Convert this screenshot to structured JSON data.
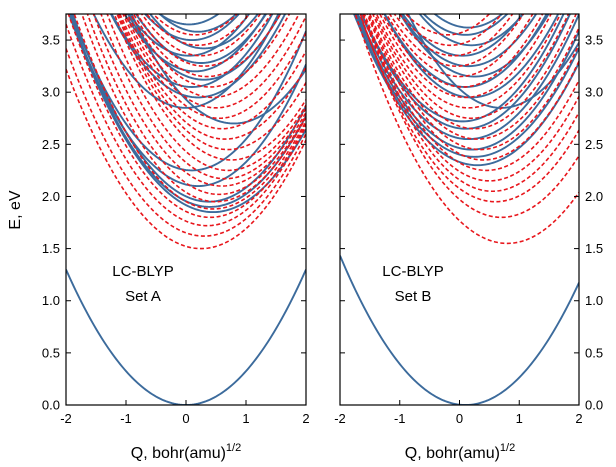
{
  "figure": {
    "ylabel": "E, eV",
    "xlabel_main": "Q, bohr(amu)",
    "xlabel_sup": "1/2"
  },
  "colors": {
    "solid": "#3c6b9c",
    "dashed": "#e8161c",
    "axis": "#000000"
  },
  "chart_data": [
    {
      "type": "line",
      "panel": "left",
      "annotation": [
        "LC-BLYP",
        "Set A"
      ],
      "xlim": [
        -2,
        2
      ],
      "ylim": [
        0,
        3.75
      ],
      "xticks": [
        -2,
        -1,
        0,
        1,
        2
      ],
      "xtick_labels": [
        "-2",
        "-1",
        "0",
        "1",
        "2"
      ],
      "yticks": [
        0,
        0.5,
        1.0,
        1.5,
        2.0,
        2.5,
        3.0,
        3.5
      ],
      "ytick_labels": [
        "0.0",
        "0.5",
        "1.0",
        "1.5",
        "2.0",
        "2.5",
        "3.0",
        "3.5"
      ],
      "ytick_side": "left",
      "grid": false,
      "series": [
        {
          "style": "solid",
          "x0": 0.0,
          "e0": 0.0,
          "curv": 0.325
        },
        {
          "style": "solid",
          "x0": 0.45,
          "e0": 1.85,
          "curv": 0.33
        },
        {
          "style": "solid",
          "x0": 0.4,
          "e0": 1.9,
          "curv": 0.34
        },
        {
          "style": "solid",
          "x0": 0.38,
          "e0": 1.95,
          "curv": 0.35
        },
        {
          "style": "solid",
          "x0": 0.2,
          "e0": 2.1,
          "curv": 0.36
        },
        {
          "style": "solid",
          "x0": 0.1,
          "e0": 2.25,
          "curv": 0.37
        },
        {
          "style": "solid",
          "x0": 0.8,
          "e0": 2.7,
          "curv": 0.36
        },
        {
          "style": "solid",
          "x0": 0.0,
          "e0": 2.85,
          "curv": 0.38
        },
        {
          "style": "solid",
          "x0": 0.2,
          "e0": 2.95,
          "curv": 0.38
        },
        {
          "style": "solid",
          "x0": 0.1,
          "e0": 3.05,
          "curv": 0.39
        },
        {
          "style": "solid",
          "x0": 0.3,
          "e0": 3.12,
          "curv": 0.39
        },
        {
          "style": "solid",
          "x0": 0.15,
          "e0": 3.2,
          "curv": 0.4
        },
        {
          "style": "solid",
          "x0": 0.25,
          "e0": 3.28,
          "curv": 0.4
        },
        {
          "style": "solid",
          "x0": 0.05,
          "e0": 3.35,
          "curv": 0.4
        },
        {
          "style": "solid",
          "x0": 0.3,
          "e0": 3.42,
          "curv": 0.41
        },
        {
          "style": "solid",
          "x0": 0.1,
          "e0": 3.5,
          "curv": 0.41
        },
        {
          "style": "solid",
          "x0": 0.2,
          "e0": 3.58,
          "curv": 0.42
        },
        {
          "style": "solid",
          "x0": 0.05,
          "e0": 3.65,
          "curv": 0.42
        },
        {
          "style": "dashed",
          "x0": 0.25,
          "e0": 1.5,
          "curv": 0.34
        },
        {
          "style": "dashed",
          "x0": 0.3,
          "e0": 1.62,
          "curv": 0.34
        },
        {
          "style": "dashed",
          "x0": 0.35,
          "e0": 1.72,
          "curv": 0.35
        },
        {
          "style": "dashed",
          "x0": 0.4,
          "e0": 1.8,
          "curv": 0.35
        },
        {
          "style": "dashed",
          "x0": 0.45,
          "e0": 1.88,
          "curv": 0.35
        },
        {
          "style": "dashed",
          "x0": 0.5,
          "e0": 1.95,
          "curv": 0.36
        },
        {
          "style": "dashed",
          "x0": 0.55,
          "e0": 2.02,
          "curv": 0.36
        },
        {
          "style": "dashed",
          "x0": 0.6,
          "e0": 2.1,
          "curv": 0.36
        },
        {
          "style": "dashed",
          "x0": 0.65,
          "e0": 2.17,
          "curv": 0.37
        },
        {
          "style": "dashed",
          "x0": 0.7,
          "e0": 2.25,
          "curv": 0.37
        },
        {
          "style": "dashed",
          "x0": 0.75,
          "e0": 2.35,
          "curv": 0.37
        },
        {
          "style": "dashed",
          "x0": 0.7,
          "e0": 2.45,
          "curv": 0.38
        },
        {
          "style": "dashed",
          "x0": 0.65,
          "e0": 2.55,
          "curv": 0.38
        },
        {
          "style": "dashed",
          "x0": 0.6,
          "e0": 2.65,
          "curv": 0.38
        },
        {
          "style": "dashed",
          "x0": 0.55,
          "e0": 2.75,
          "curv": 0.39
        },
        {
          "style": "dashed",
          "x0": 0.5,
          "e0": 2.85,
          "curv": 0.39
        },
        {
          "style": "dashed",
          "x0": 0.45,
          "e0": 2.95,
          "curv": 0.39
        },
        {
          "style": "dashed",
          "x0": 0.4,
          "e0": 3.05,
          "curv": 0.4
        },
        {
          "style": "dashed",
          "x0": 0.35,
          "e0": 3.15,
          "curv": 0.4
        },
        {
          "style": "dashed",
          "x0": 0.3,
          "e0": 3.25,
          "curv": 0.4
        },
        {
          "style": "dashed",
          "x0": 0.25,
          "e0": 3.35,
          "curv": 0.41
        },
        {
          "style": "dashed",
          "x0": 0.2,
          "e0": 3.45,
          "curv": 0.41
        },
        {
          "style": "dashed",
          "x0": 0.15,
          "e0": 3.55,
          "curv": 0.41
        }
      ]
    },
    {
      "type": "line",
      "panel": "right",
      "annotation": [
        "LC-BLYP",
        "Set B"
      ],
      "xlim": [
        -2,
        2
      ],
      "ylim": [
        0,
        3.75
      ],
      "xticks": [
        -2,
        -1,
        0,
        1,
        2
      ],
      "xtick_labels": [
        "-2",
        "-1",
        "0",
        "1",
        "2"
      ],
      "yticks": [
        0,
        0.5,
        1.0,
        1.5,
        2.0,
        2.5,
        3.0,
        3.5
      ],
      "ytick_labels": [
        "0.0",
        "0.5",
        "1.0",
        "1.5",
        "2.0",
        "2.5",
        "3.0",
        "3.5"
      ],
      "ytick_side": "right",
      "grid": false,
      "series": [
        {
          "style": "solid",
          "x0": 0.1,
          "e0": 0.0,
          "curv": 0.325
        },
        {
          "style": "solid",
          "x0": 0.3,
          "e0": 2.3,
          "curv": 0.34
        },
        {
          "style": "solid",
          "x0": 0.25,
          "e0": 2.38,
          "curv": 0.34
        },
        {
          "style": "solid",
          "x0": 0.2,
          "e0": 2.45,
          "curv": 0.35
        },
        {
          "style": "solid",
          "x0": 0.15,
          "e0": 2.55,
          "curv": 0.35
        },
        {
          "style": "solid",
          "x0": 0.1,
          "e0": 2.65,
          "curv": 0.36
        },
        {
          "style": "solid",
          "x0": 0.05,
          "e0": 2.72,
          "curv": 0.36
        },
        {
          "style": "solid",
          "x0": 0.7,
          "e0": 2.85,
          "curv": 0.37
        },
        {
          "style": "solid",
          "x0": 0.2,
          "e0": 2.95,
          "curv": 0.38
        },
        {
          "style": "solid",
          "x0": 0.1,
          "e0": 3.05,
          "curv": 0.38
        },
        {
          "style": "solid",
          "x0": 0.25,
          "e0": 3.15,
          "curv": 0.39
        },
        {
          "style": "solid",
          "x0": 0.15,
          "e0": 3.25,
          "curv": 0.39
        },
        {
          "style": "solid",
          "x0": 0.05,
          "e0": 3.35,
          "curv": 0.4
        },
        {
          "style": "solid",
          "x0": 0.2,
          "e0": 3.45,
          "curv": 0.4
        },
        {
          "style": "solid",
          "x0": 0.1,
          "e0": 3.55,
          "curv": 0.41
        },
        {
          "style": "solid",
          "x0": 0.15,
          "e0": 3.62,
          "curv": 0.41
        },
        {
          "style": "dashed",
          "x0": 0.8,
          "e0": 1.55,
          "curv": 0.34
        },
        {
          "style": "dashed",
          "x0": 0.7,
          "e0": 1.8,
          "curv": 0.35
        },
        {
          "style": "dashed",
          "x0": 0.6,
          "e0": 1.95,
          "curv": 0.35
        },
        {
          "style": "dashed",
          "x0": 0.55,
          "e0": 2.05,
          "curv": 0.36
        },
        {
          "style": "dashed",
          "x0": 0.5,
          "e0": 2.15,
          "curv": 0.36
        },
        {
          "style": "dashed",
          "x0": 0.45,
          "e0": 2.25,
          "curv": 0.36
        },
        {
          "style": "dashed",
          "x0": 0.4,
          "e0": 2.35,
          "curv": 0.37
        },
        {
          "style": "dashed",
          "x0": 0.35,
          "e0": 2.45,
          "curv": 0.37
        },
        {
          "style": "dashed",
          "x0": 0.3,
          "e0": 2.55,
          "curv": 0.37
        },
        {
          "style": "dashed",
          "x0": 0.25,
          "e0": 2.65,
          "curv": 0.38
        },
        {
          "style": "dashed",
          "x0": 0.2,
          "e0": 2.75,
          "curv": 0.38
        },
        {
          "style": "dashed",
          "x0": 0.15,
          "e0": 2.85,
          "curv": 0.38
        },
        {
          "style": "dashed",
          "x0": 0.1,
          "e0": 2.95,
          "curv": 0.39
        },
        {
          "style": "dashed",
          "x0": 0.05,
          "e0": 3.05,
          "curv": 0.39
        },
        {
          "style": "dashed",
          "x0": 0.0,
          "e0": 3.15,
          "curv": 0.4
        },
        {
          "style": "dashed",
          "x0": -0.05,
          "e0": 3.25,
          "curv": 0.4
        },
        {
          "style": "dashed",
          "x0": -0.1,
          "e0": 3.35,
          "curv": 0.41
        },
        {
          "style": "dashed",
          "x0": -0.15,
          "e0": 3.45,
          "curv": 0.41
        },
        {
          "style": "dashed",
          "x0": -0.2,
          "e0": 3.55,
          "curv": 0.41
        }
      ]
    }
  ]
}
